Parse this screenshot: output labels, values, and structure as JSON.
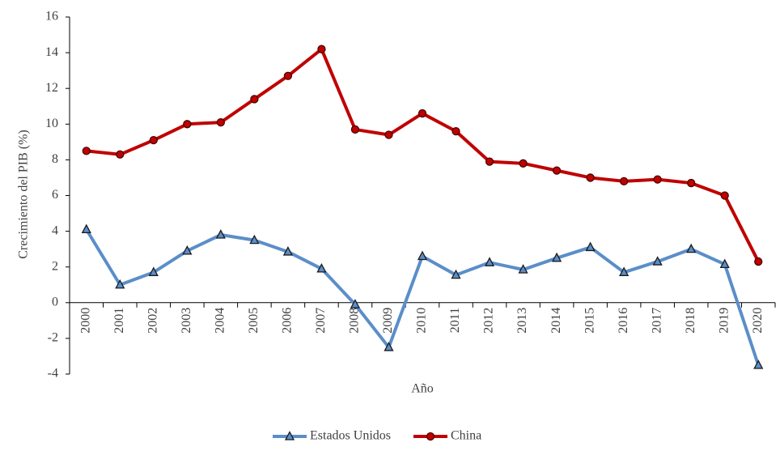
{
  "chart_data": {
    "type": "line",
    "x_label": "Año",
    "y_label": "Crecimiento del PIB (%)",
    "categories": [
      "2000",
      "2001",
      "2002",
      "2003",
      "2004",
      "2005",
      "2006",
      "2007",
      "2008",
      "2009",
      "2010",
      "2011",
      "2012",
      "2013",
      "2014",
      "2015",
      "2016",
      "2017",
      "2018",
      "2019",
      "2020"
    ],
    "series": [
      {
        "name": "Estados Unidos",
        "color": "#5b8ec9",
        "marker": "triangle",
        "values": [
          4.1,
          1.0,
          1.7,
          2.9,
          3.8,
          3.5,
          2.85,
          1.9,
          -0.1,
          -2.5,
          2.6,
          1.55,
          2.25,
          1.85,
          2.5,
          3.1,
          1.7,
          2.3,
          3.0,
          2.15,
          -3.5
        ]
      },
      {
        "name": "China",
        "color": "#c00000",
        "marker": "circle",
        "values": [
          8.5,
          8.3,
          9.1,
          10.0,
          10.1,
          11.4,
          12.7,
          14.2,
          9.7,
          9.4,
          10.6,
          9.6,
          7.9,
          7.8,
          7.4,
          7.0,
          6.8,
          6.9,
          6.7,
          6.0,
          2.3
        ]
      }
    ],
    "ylim": [
      -4,
      16
    ],
    "yticks": [
      -4,
      -2,
      0,
      2,
      4,
      6,
      8,
      10,
      12,
      14,
      16
    ],
    "grid": false,
    "legend": "bottom"
  }
}
